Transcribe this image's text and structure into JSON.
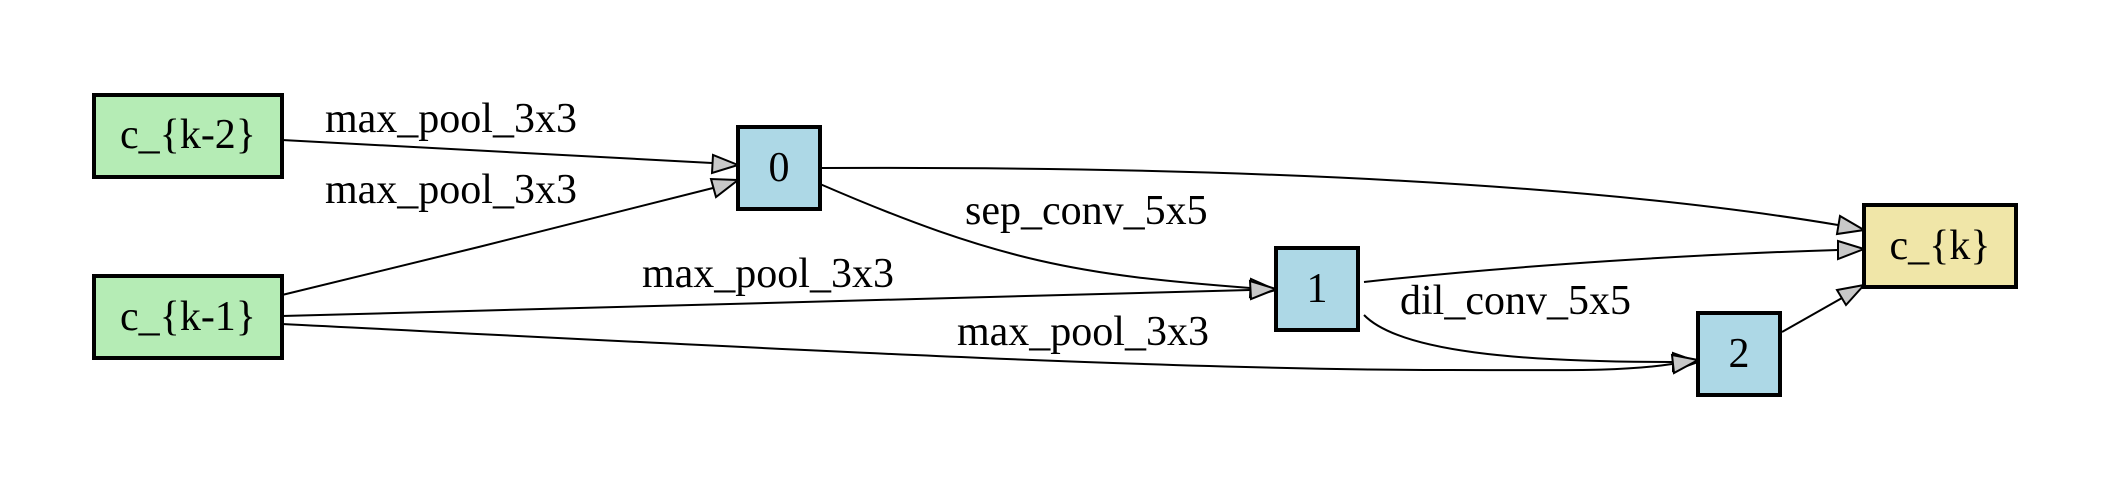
{
  "colors": {
    "input_fill": "#b5ecb5",
    "intermediate_fill": "#add8e6",
    "output_fill": "#f0e6a8",
    "arrow_fill": "#c8c8c8"
  },
  "nodes": {
    "c_k_minus_2": {
      "label": "c_{k-2}"
    },
    "c_k_minus_1": {
      "label": "c_{k-1}"
    },
    "n0": {
      "label": "0"
    },
    "n1": {
      "label": "1"
    },
    "n2": {
      "label": "2"
    },
    "c_k": {
      "label": "c_{k}"
    }
  },
  "edges": {
    "ckm2_to_0": {
      "label": "max_pool_3x3"
    },
    "ckm1_to_0": {
      "label": "max_pool_3x3"
    },
    "n0_to_1": {
      "label": "sep_conv_5x5"
    },
    "ckm1_to_1": {
      "label": "max_pool_3x3"
    },
    "n1_to_2": {
      "label": "dil_conv_5x5"
    },
    "ckm1_to_2": {
      "label": "max_pool_3x3"
    },
    "n0_to_ck": {
      "label": ""
    },
    "n1_to_ck": {
      "label": ""
    },
    "n2_to_ck": {
      "label": ""
    }
  }
}
